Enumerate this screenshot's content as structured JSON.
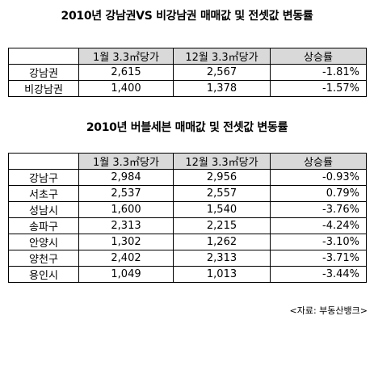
{
  "table1": {
    "title": "2010년 강남권VS 비강남권 매매값 및 전셋값 변동률",
    "headers": [
      "",
      "1월 3.3㎡당가",
      "12월 3.3㎡당가",
      "상승률"
    ],
    "rows": [
      {
        "region": "강남권",
        "jan": "2,615",
        "dec": "2,567",
        "change": "-1.81%"
      },
      {
        "region": "비강남권",
        "jan": "1,400",
        "dec": "1,378",
        "change": "-1.57%"
      }
    ]
  },
  "table2": {
    "title": "2010년 버블세븐 매매값 및 전셋값 변동률",
    "headers": [
      "",
      "1월 3.3㎡당가",
      "12월 3.3㎡당가",
      "상승률"
    ],
    "rows": [
      {
        "region": "강남구",
        "jan": "2,984",
        "dec": "2,956",
        "change": "-0.93%"
      },
      {
        "region": "서초구",
        "jan": "2,537",
        "dec": "2,557",
        "change": "0.79%"
      },
      {
        "region": "성남시",
        "jan": "1,600",
        "dec": "1,540",
        "change": "-3.76%"
      },
      {
        "region": "송파구",
        "jan": "2,313",
        "dec": "2,215",
        "change": "-4.24%"
      },
      {
        "region": "안양시",
        "jan": "1,302",
        "dec": "1,262",
        "change": "-3.10%"
      },
      {
        "region": "양천구",
        "jan": "2,402",
        "dec": "2,313",
        "change": "-3.71%"
      },
      {
        "region": "용인시",
        "jan": "1,049",
        "dec": "1,013",
        "change": "-3.44%"
      }
    ]
  },
  "source": "<자료: 부동산뱅크>"
}
